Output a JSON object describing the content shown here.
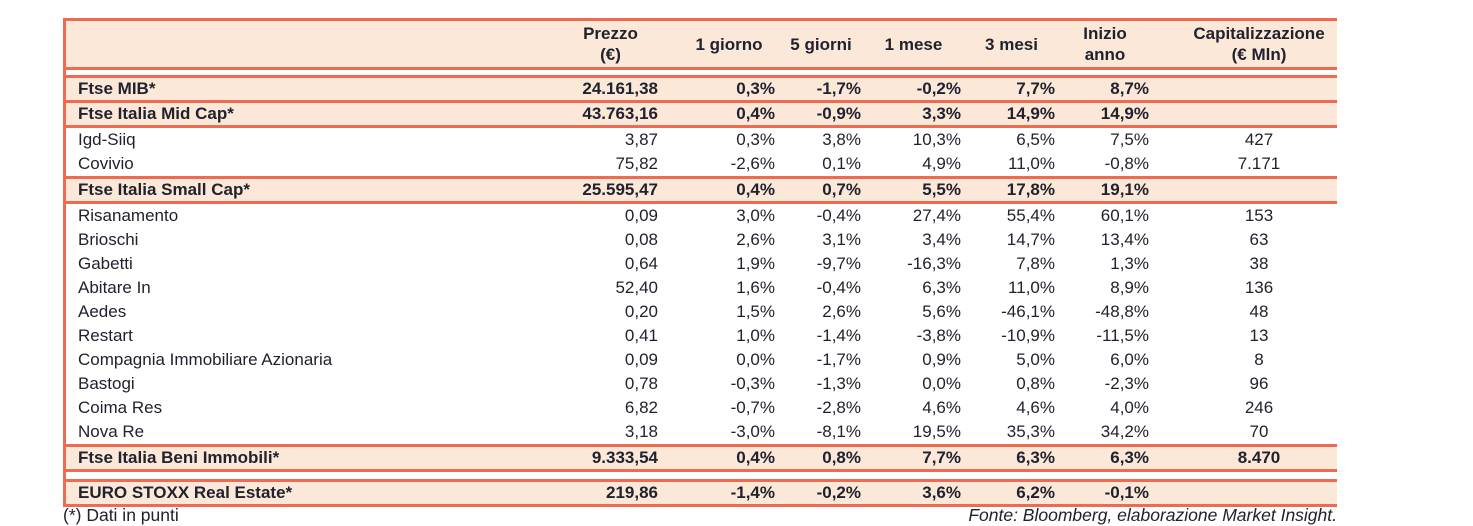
{
  "accent_color": "#ee6a50",
  "highlight_color": "#fbe8d9",
  "text_color": "#20222e",
  "table": {
    "columns": [
      {
        "label": ""
      },
      {
        "label": "Prezzo\n(€)"
      },
      {
        "label": "1 giorno"
      },
      {
        "label": "5 giorni"
      },
      {
        "label": "1 mese"
      },
      {
        "label": "3 mesi"
      },
      {
        "label": "Inizio anno"
      },
      {
        "label": "Capitalizzazione\n(€ Mln)"
      }
    ],
    "rows": [
      {
        "type": "index",
        "name": "Ftse MIB*",
        "values": [
          "24.161,38",
          "0,3%",
          "-1,7%",
          "-0,2%",
          "7,7%",
          "8,7%",
          ""
        ]
      },
      {
        "type": "index",
        "name": "Ftse Italia Mid Cap*",
        "values": [
          "43.763,16",
          "0,4%",
          "-0,9%",
          "3,3%",
          "14,9%",
          "14,9%",
          ""
        ]
      },
      {
        "type": "stock",
        "name": "Igd-Siiq",
        "values": [
          "3,87",
          "0,3%",
          "3,8%",
          "10,3%",
          "6,5%",
          "7,5%",
          "427"
        ]
      },
      {
        "type": "stock",
        "name": "Covivio",
        "values": [
          "75,82",
          "-2,6%",
          "0,1%",
          "4,9%",
          "11,0%",
          "-0,8%",
          "7.171"
        ]
      },
      {
        "type": "index",
        "name": "Ftse Italia Small Cap*",
        "values": [
          "25.595,47",
          "0,4%",
          "0,7%",
          "5,5%",
          "17,8%",
          "19,1%",
          ""
        ]
      },
      {
        "type": "stock",
        "name": "Risanamento",
        "values": [
          "0,09",
          "3,0%",
          "-0,4%",
          "27,4%",
          "55,4%",
          "60,1%",
          "153"
        ]
      },
      {
        "type": "stock",
        "name": "Brioschi",
        "values": [
          "0,08",
          "2,6%",
          "3,1%",
          "3,4%",
          "14,7%",
          "13,4%",
          "63"
        ]
      },
      {
        "type": "stock",
        "name": "Gabetti",
        "values": [
          "0,64",
          "1,9%",
          "-9,7%",
          "-16,3%",
          "7,8%",
          "1,3%",
          "38"
        ]
      },
      {
        "type": "stock",
        "name": "Abitare In",
        "values": [
          "52,40",
          "1,6%",
          "-0,4%",
          "6,3%",
          "11,0%",
          "8,9%",
          "136"
        ]
      },
      {
        "type": "stock",
        "name": "Aedes",
        "values": [
          "0,20",
          "1,5%",
          "2,6%",
          "5,6%",
          "-46,1%",
          "-48,8%",
          "48"
        ]
      },
      {
        "type": "stock",
        "name": "Restart",
        "values": [
          "0,41",
          "1,0%",
          "-1,4%",
          "-3,8%",
          "-10,9%",
          "-11,5%",
          "13"
        ]
      },
      {
        "type": "stock",
        "name": "Compagnia Immobiliare Azionaria",
        "values": [
          "0,09",
          "0,0%",
          "-1,7%",
          "0,9%",
          "5,0%",
          "6,0%",
          "8"
        ]
      },
      {
        "type": "stock",
        "name": "Bastogi",
        "values": [
          "0,78",
          "-0,3%",
          "-1,3%",
          "0,0%",
          "0,8%",
          "-2,3%",
          "96"
        ]
      },
      {
        "type": "stock",
        "name": "Coima Res",
        "values": [
          "6,82",
          "-0,7%",
          "-2,8%",
          "4,6%",
          "4,6%",
          "4,0%",
          "246"
        ]
      },
      {
        "type": "stock",
        "name": "Nova Re",
        "values": [
          "3,18",
          "-3,0%",
          "-8,1%",
          "19,5%",
          "35,3%",
          "34,2%",
          "70"
        ]
      },
      {
        "type": "index",
        "name": "Ftse Italia Beni Immobili*",
        "values": [
          "9.333,54",
          "0,4%",
          "0,8%",
          "7,7%",
          "6,3%",
          "6,3%",
          "8.470"
        ]
      },
      {
        "type": "spacer"
      },
      {
        "type": "index",
        "name": "EURO STOXX Real Estate*",
        "values": [
          "219,86",
          "-1,4%",
          "-0,2%",
          "3,6%",
          "6,2%",
          "-0,1%",
          ""
        ]
      }
    ]
  },
  "footer": {
    "note": "(*) Dati in punti",
    "source": "Fonte: Bloomberg, elaborazione Market Insight."
  }
}
